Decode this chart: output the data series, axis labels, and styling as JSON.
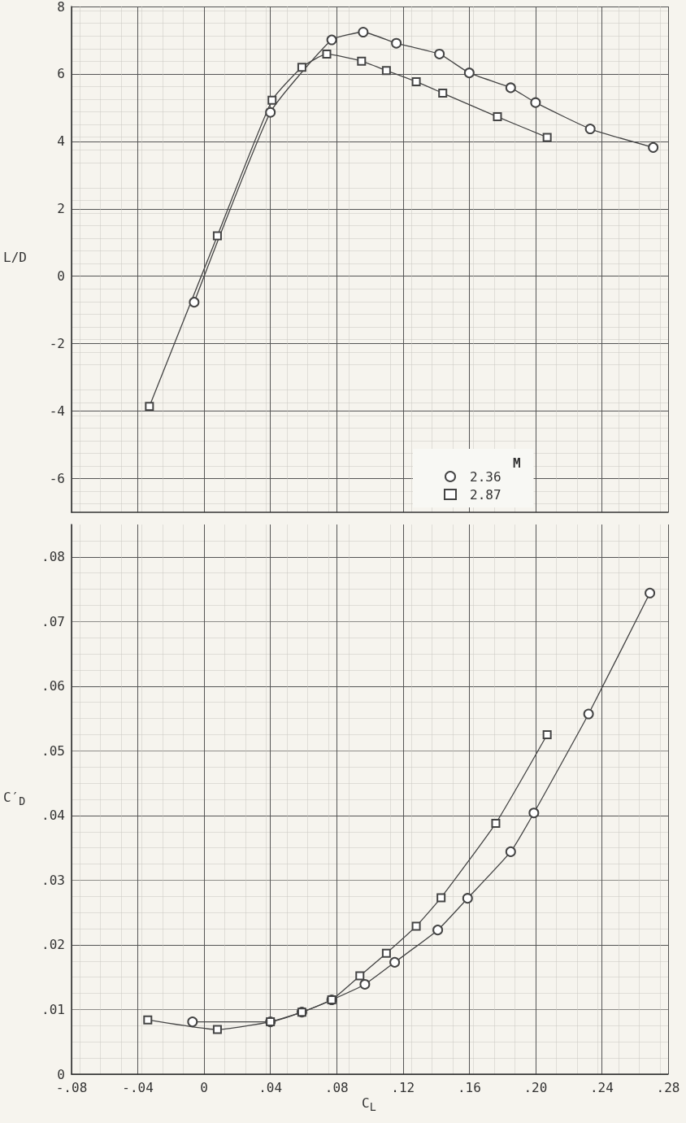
{
  "chart_data": [
    {
      "type": "line",
      "ylabel": "L/D",
      "legend_title": "M",
      "legend": "bottom",
      "grid": true,
      "tick_labels": "y",
      "line_style": "solid",
      "xlim": [
        -0.08,
        0.28
      ],
      "xticks": [
        {
          "value": -0.08,
          "label": null
        },
        {
          "value": -0.04,
          "label": null
        },
        {
          "value": 0,
          "label": null
        },
        {
          "value": 0.04,
          "label": null
        },
        {
          "value": 0.08,
          "label": null
        },
        {
          "value": 0.12,
          "label": null
        },
        {
          "value": 0.16,
          "label": null
        },
        {
          "value": 0.2,
          "label": null
        },
        {
          "value": 0.24,
          "label": null
        },
        {
          "value": 0.28,
          "label": null
        }
      ],
      "ylim": [
        -7,
        8
      ],
      "yticks": [
        -6,
        -4,
        -2,
        0,
        2,
        4,
        6,
        8
      ],
      "series": [
        {
          "name": "2.36",
          "color": "#444444",
          "marker": "circle",
          "x": [
            -0.006,
            0.04,
            0.077,
            0.096,
            0.116,
            0.142,
            0.16,
            0.185,
            0.2,
            0.233,
            0.271
          ],
          "values": [
            -0.77,
            4.86,
            7.01,
            7.24,
            6.91,
            6.59,
            6.03,
            5.59,
            5.15,
            4.37,
            3.82
          ]
        },
        {
          "name": "2.87",
          "color": "#444444",
          "marker": "square",
          "x": [
            -0.033,
            0.008,
            0.041,
            0.059,
            0.074,
            0.095,
            0.11,
            0.128,
            0.144,
            0.177,
            0.207
          ],
          "values": [
            -3.86,
            1.2,
            5.22,
            6.2,
            6.59,
            6.38,
            6.1,
            5.77,
            5.43,
            4.73,
            4.12
          ]
        }
      ]
    },
    {
      "type": "line",
      "xlabel": "C$_{L}$",
      "ylabel": "C′$_{D}$",
      "grid": true,
      "line_style": "solid",
      "xlim": [
        -0.08,
        0.28
      ],
      "xticks": [
        {
          "value": -0.08,
          "label": "-.08"
        },
        {
          "value": -0.04,
          "label": "-.04"
        },
        0,
        {
          "value": 0.04,
          "label": ".04"
        },
        {
          "value": 0.08,
          "label": ".08"
        },
        {
          "value": 0.12,
          "label": ".12"
        },
        {
          "value": 0.16,
          "label": ".16"
        },
        {
          "value": 0.2,
          "label": ".20"
        },
        {
          "value": 0.24,
          "label": ".24"
        },
        {
          "value": 0.28,
          "label": ".28"
        }
      ],
      "ylim": [
        0,
        0.085
      ],
      "yticks": [
        0,
        {
          "value": 0.01,
          "label": ".01"
        },
        {
          "value": 0.02,
          "label": ".02"
        },
        {
          "value": 0.03,
          "label": ".03"
        },
        {
          "value": 0.04,
          "label": ".04"
        },
        {
          "value": 0.05,
          "label": ".05"
        },
        {
          "value": 0.06,
          "label": ".06"
        },
        {
          "value": 0.07,
          "label": ".07"
        },
        {
          "value": 0.08,
          "label": ".08"
        }
      ],
      "series": [
        {
          "name": "2.36",
          "color": "#444444",
          "marker": "circle",
          "x": [
            -0.007,
            0.04,
            0.059,
            0.077,
            0.097,
            0.115,
            0.141,
            0.159,
            0.185,
            0.199,
            0.232,
            0.269
          ],
          "values": [
            0.0081,
            0.0081,
            0.0096,
            0.0115,
            0.0139,
            0.0173,
            0.0223,
            0.0272,
            0.0344,
            0.0404,
            0.0557,
            0.0744
          ]
        },
        {
          "name": "2.87",
          "color": "#444444",
          "marker": "square",
          "x": [
            -0.034,
            0.008,
            0.04,
            0.059,
            0.077,
            0.094,
            0.11,
            0.128,
            0.143,
            0.176,
            0.207
          ],
          "values": [
            0.0084,
            0.0069,
            0.0081,
            0.0096,
            0.0115,
            0.0152,
            0.0187,
            0.0229,
            0.0273,
            0.0388,
            0.0525
          ]
        }
      ]
    }
  ]
}
